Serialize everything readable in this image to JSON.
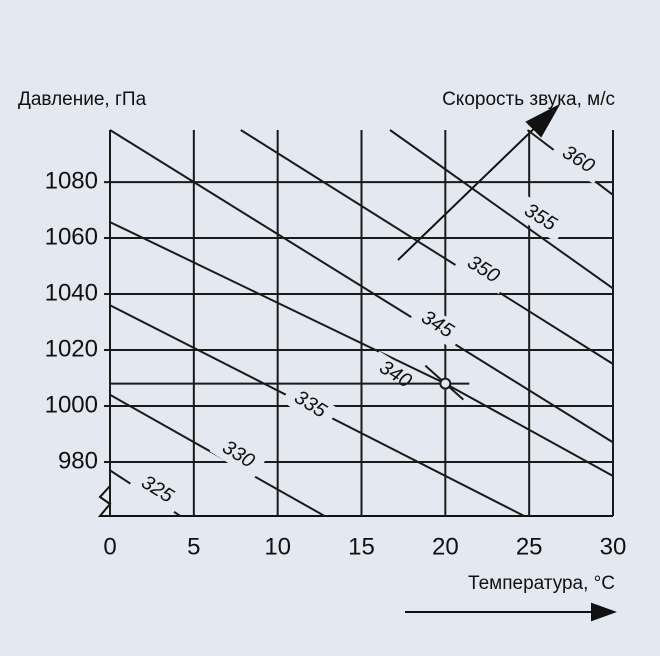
{
  "chart_data": {
    "type": "nomogram",
    "y_label": "Давление, гПа",
    "x_label": "Температура, °C",
    "speed_label": "Скорость звука, м/с",
    "xlim": [
      0,
      30
    ],
    "ylim": [
      960.7,
      1098.6
    ],
    "xticks": [
      0,
      5,
      10,
      15,
      20,
      25,
      30
    ],
    "yticks": [
      980,
      1000,
      1020,
      1040,
      1060,
      1080
    ],
    "grid": true,
    "color": "#1a1a1a",
    "series": [
      {
        "name": "360",
        "x": [
          24.9,
          30
        ],
        "values": [
          1098.6,
          1075.4
        ]
      },
      {
        "name": "355",
        "x": [
          16.7,
          30
        ],
        "values": [
          1098.6,
          1042
        ]
      },
      {
        "name": "350",
        "x": [
          7.8,
          30
        ],
        "values": [
          1098.6,
          1015
        ]
      },
      {
        "name": "345",
        "x": [
          0,
          30
        ],
        "values": [
          1098.6,
          987
        ]
      },
      {
        "name": "340",
        "x": [
          0,
          20,
          30
        ],
        "values": [
          1065.7,
          1008,
          975
        ]
      },
      {
        "name": "335",
        "x": [
          0,
          24.7
        ],
        "values": [
          1036,
          960.7
        ]
      },
      {
        "name": "330",
        "x": [
          0,
          12.8
        ],
        "values": [
          1004,
          960.7
        ]
      },
      {
        "name": "325",
        "x": [
          0,
          4.2
        ],
        "values": [
          977,
          960.7
        ]
      }
    ],
    "example_point": {
      "x": 20,
      "y": 1008
    }
  }
}
